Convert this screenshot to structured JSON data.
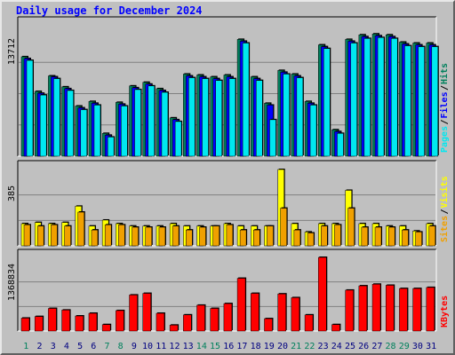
{
  "chart_data": [
    {
      "type": "bar",
      "title": "Daily usage for December 2024",
      "max_label": "13712",
      "ylabel_parts": [
        "Pages",
        "Files",
        "Hits"
      ],
      "ylabel_sep": "/",
      "categories": [
        "1",
        "2",
        "3",
        "4",
        "5",
        "6",
        "7",
        "8",
        "9",
        "10",
        "11",
        "12",
        "13",
        "14",
        "15",
        "16",
        "17",
        "18",
        "19",
        "20",
        "21",
        "22",
        "23",
        "24",
        "25",
        "26",
        "27",
        "28",
        "29",
        "30",
        "31"
      ],
      "weekend_days": [
        "1",
        "7",
        "8",
        "14",
        "15",
        "21",
        "22",
        "28",
        "29"
      ],
      "ylim": [
        0,
        13712
      ],
      "series": [
        {
          "name": "Hits",
          "color": "#00805C",
          "values": [
            10900,
            7100,
            8800,
            7600,
            5500,
            6000,
            2500,
            5900,
            7700,
            8100,
            7400,
            4200,
            9000,
            8900,
            8700,
            8900,
            12800,
            8700,
            5800,
            9400,
            9000,
            6000,
            12200,
            2900,
            12800,
            13300,
            13400,
            13300,
            12500,
            12400,
            12400
          ]
        },
        {
          "name": "Files",
          "color": "#0000FF",
          "values": [
            10700,
            6900,
            8700,
            7400,
            5300,
            5800,
            2300,
            5700,
            7500,
            7900,
            7200,
            4000,
            8800,
            8700,
            8500,
            8700,
            12600,
            8500,
            5600,
            9200,
            8800,
            5800,
            12000,
            2700,
            12600,
            13100,
            13200,
            13100,
            12300,
            12200,
            12200
          ]
        },
        {
          "name": "Pages",
          "color": "#00E8F0",
          "values": [
            10500,
            6700,
            8500,
            7200,
            5100,
            5600,
            2100,
            5500,
            7300,
            7700,
            7000,
            3800,
            8600,
            8500,
            8300,
            8500,
            12400,
            8300,
            4000,
            9000,
            8600,
            5600,
            11800,
            2500,
            12400,
            12900,
            13000,
            12900,
            12100,
            12000,
            12000
          ]
        }
      ]
    },
    {
      "type": "bar",
      "max_label": "385",
      "ylabel_parts": [
        "Sites",
        "Visits"
      ],
      "ylabel_sep": "/",
      "ylim": [
        0,
        385
      ],
      "series": [
        {
          "name": "Visits",
          "color": "#FFFF00",
          "values": [
            112,
            118,
            112,
            118,
            200,
            100,
            130,
            112,
            100,
            100,
            100,
            112,
            100,
            100,
            100,
            112,
            100,
            100,
            100,
            385,
            112,
            70,
            112,
            112,
            280,
            112,
            112,
            100,
            100,
            75,
            112
          ]
        },
        {
          "name": "Sites",
          "color": "#F0A000",
          "values": [
            106,
            100,
            106,
            100,
            170,
            80,
            106,
            106,
            94,
            94,
            94,
            100,
            80,
            94,
            100,
            106,
            80,
            80,
            100,
            190,
            80,
            65,
            100,
            106,
            190,
            94,
            94,
            94,
            80,
            70,
            100
          ]
        }
      ]
    },
    {
      "type": "bar",
      "max_label": "1368834",
      "ylabel_parts": [
        "KBytes"
      ],
      "ylabel_sep": "",
      "ylim": [
        0,
        1368834
      ],
      "series": [
        {
          "name": "KBytes",
          "color": "#FF0000",
          "values": [
            240000,
            270000,
            420000,
            390000,
            280000,
            330000,
            120000,
            380000,
            670000,
            700000,
            330000,
            110000,
            300000,
            480000,
            420000,
            510000,
            980000,
            700000,
            230000,
            690000,
            620000,
            300000,
            1368834,
            120000,
            760000,
            840000,
            870000,
            850000,
            790000,
            790000,
            810000
          ]
        }
      ]
    }
  ]
}
